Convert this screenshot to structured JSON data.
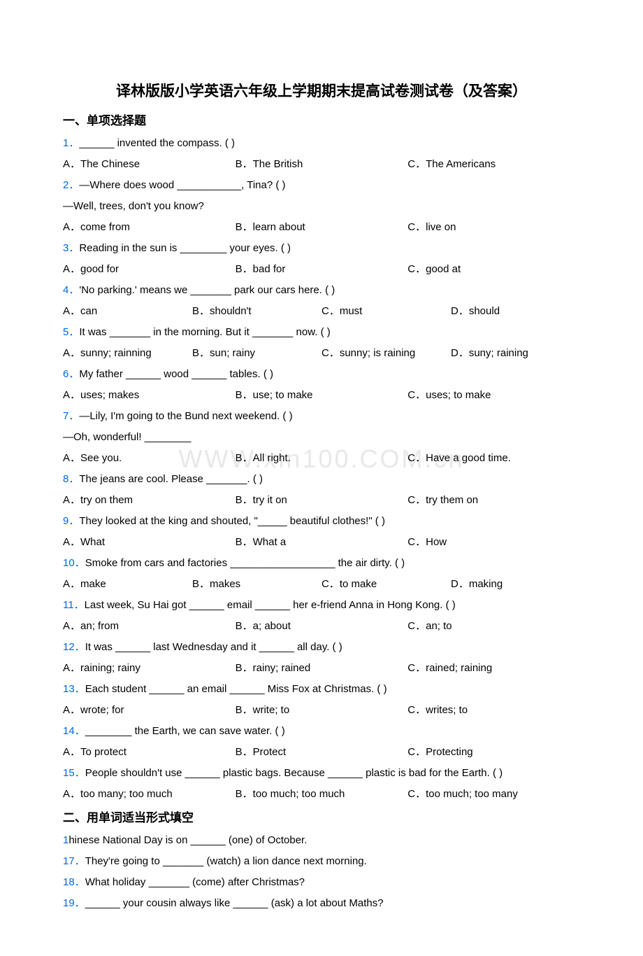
{
  "watermark": "WWW.xin100.COM.cn",
  "title": "译林版版小学英语六年级上学期期末提高试卷测试卷（及答案）",
  "section1_title": "一、单项选择题",
  "section2_title": "二、用单词适当形式填空",
  "q1": {
    "num": "1．",
    "text": "______ invented the compass. (    )",
    "a": "A．The Chinese",
    "b": "B．The British",
    "c": "C．The Americans"
  },
  "q2": {
    "num": "2．",
    "text": "—Where does wood ___________, Tina? (    )",
    "sub": "—Well, trees, don't you know?",
    "a": "A．come from",
    "b": "B．learn about",
    "c": "C．live on"
  },
  "q3": {
    "num": "3．",
    "text": "Reading in the sun is ________ your eyes. (    )",
    "a": "A．good for",
    "b": "B．bad for",
    "c": "C．good at"
  },
  "q4": {
    "num": "4．",
    "text": "'No parking.' means we _______ park our cars here. (    )",
    "a": "A．can",
    "b": "B．shouldn't",
    "c": "C．must",
    "d": "D．should"
  },
  "q5": {
    "num": "5．",
    "text": "It was _______ in the morning. But it _______ now. (    )",
    "a": "A．sunny; rainning",
    "b": "B．sun; rainy",
    "c": "C．sunny; is raining",
    "d": "D．suny; raining"
  },
  "q6": {
    "num": "6．",
    "text": "My father ______ wood ______ tables. (   )",
    "a": "A．uses; makes",
    "b": "B．use; to make",
    "c": "C．uses; to make"
  },
  "q7": {
    "num": "7．",
    "text": "—Lily, I'm going to the Bund next weekend. (     )",
    "sub": "—Oh, wonderful! ________",
    "a": "A．See you.",
    "b": "B．All right.",
    "c": "C．Have a good time."
  },
  "q8": {
    "num": "8．",
    "text": "The jeans are cool. Please _______. (    )",
    "a": "A．try on them",
    "b": "B．try it on",
    "c": "C．try them on"
  },
  "q9": {
    "num": "9．",
    "text": "They looked at the king and shouted, \"_____ beautiful clothes!\" (    )",
    "a": "A．What",
    "b": "B．What a",
    "c": "C．How"
  },
  "q10": {
    "num": "10．",
    "text": "Smoke from cars and factories __________________ the air dirty. (    )",
    "a": "A．make",
    "b": "B．makes",
    "c": "C．to make",
    "d": "D．making"
  },
  "q11": {
    "num": "11．",
    "text": "Last week, Su Hai got ______ email ______ her e-friend Anna in Hong Kong. (    )",
    "a": "A．an; from",
    "b": "B．a; about",
    "c": "C．an; to"
  },
  "q12": {
    "num": "12．",
    "text": "It was ______ last Wednesday and it ______ all day. (    )",
    "a": "A．raining; rainy",
    "b": "B．rainy; rained",
    "c": "C．rained; raining"
  },
  "q13": {
    "num": "13．",
    "text": "Each student ______ an email ______ Miss Fox at Christmas. (    )",
    "a": "A．wrote; for",
    "b": "B．write; to",
    "c": "C．writes; to"
  },
  "q14": {
    "num": "14．",
    "text": "________ the Earth, we can save water. (    )",
    "a": "A．To protect",
    "b": "B．Protect",
    "c": "C．Protecting"
  },
  "q15": {
    "num": "15．",
    "text": "People shouldn't use ______ plastic bags. Because ______ plastic is bad for the Earth. (    )",
    "a": "A．too many; too much",
    "b": "B．too much; too much",
    "c": "C．too much; too many"
  },
  "f16": {
    "num": "1",
    "text": "hinese National Day is on ______ (one) of October."
  },
  "f17": {
    "num": "17．",
    "text": "They're going to _______ (watch) a lion dance next morning."
  },
  "f18": {
    "num": "18．",
    "text": "What holiday _______ (come) after Christmas?"
  },
  "f19": {
    "num": "19．",
    "text": "______ your cousin always like ______ (ask) a lot about Maths?"
  }
}
